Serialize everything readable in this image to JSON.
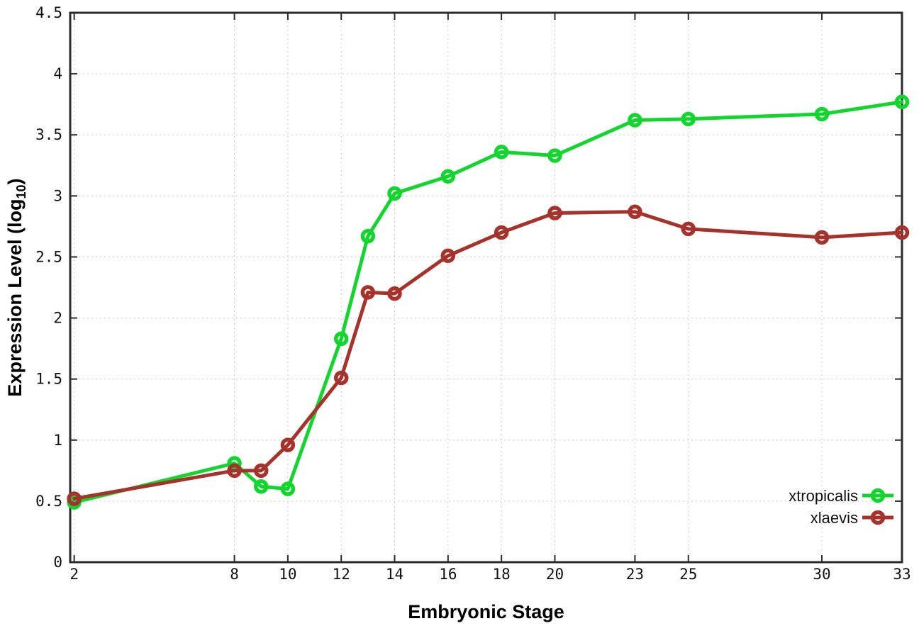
{
  "chart_data": {
    "type": "line",
    "title": "",
    "xlabel": "Embryonic Stage",
    "ylabel": "Expression Level (log10)",
    "ylabel_rich": {
      "pre": "Expression Level (log",
      "sub": "10",
      "post": ")"
    },
    "x": [
      2,
      8,
      9,
      10,
      12,
      13,
      14,
      16,
      18,
      20,
      23,
      25,
      30,
      33
    ],
    "series": [
      {
        "name": "xtropicalis",
        "color": "#12d62e",
        "marker": "open-circle",
        "values": [
          0.49,
          0.81,
          0.62,
          0.6,
          1.83,
          2.67,
          3.02,
          3.16,
          3.36,
          3.33,
          3.62,
          3.63,
          3.67,
          3.77
        ]
      },
      {
        "name": "xlaevis",
        "color": "#a5322b",
        "marker": "open-circle",
        "values": [
          0.52,
          0.75,
          0.75,
          0.96,
          1.51,
          2.21,
          2.2,
          2.51,
          2.7,
          2.86,
          2.87,
          2.73,
          2.66,
          2.7
        ]
      }
    ],
    "xticks": {
      "values": [
        2,
        8,
        10,
        12,
        14,
        16,
        18,
        20,
        23,
        25,
        30,
        33
      ],
      "labels": [
        "2",
        "8",
        "10",
        "12",
        "14",
        "16",
        "18",
        "20",
        "23",
        "25",
        "30",
        "33"
      ]
    },
    "yticks": {
      "values": [
        0,
        0.5,
        1,
        1.5,
        2,
        2.5,
        3,
        3.5,
        4,
        4.5
      ],
      "labels": [
        "0",
        "0.5",
        "1",
        "1.5",
        "2",
        "2.5",
        "3",
        "3.5",
        "4",
        "4.5"
      ]
    },
    "xlim": [
      1.85,
      33
    ],
    "ylim": [
      0,
      4.5
    ],
    "grid": true,
    "legend": {
      "position": "inside-right",
      "entries": [
        "xtropicalis",
        "xlaevis"
      ]
    },
    "colors": {
      "border": "#2b2b2b",
      "grid": "#c9c9c9",
      "text": "#000000",
      "background": "#ffffff"
    }
  }
}
